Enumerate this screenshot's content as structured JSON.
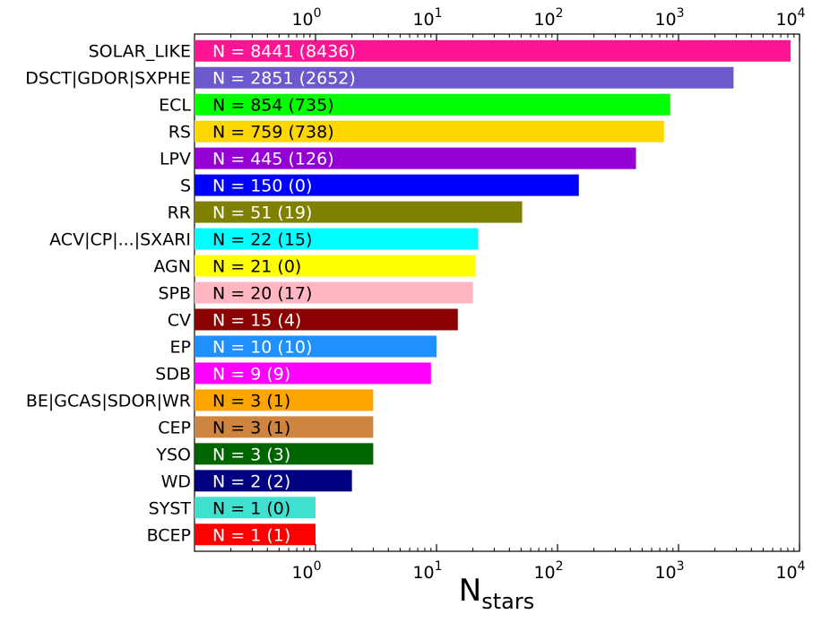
{
  "chart_data": {
    "type": "bar",
    "orientation": "horizontal",
    "x_scale": "log",
    "xlabel": "N",
    "xlabel_sub": "stars",
    "xlim": [
      0.1,
      10000
    ],
    "x_ticks": [
      1,
      10,
      100,
      1000,
      10000
    ],
    "x_tick_labels": [
      {
        "base": "10",
        "exp": "0"
      },
      {
        "base": "10",
        "exp": "1"
      },
      {
        "base": "10",
        "exp": "2"
      },
      {
        "base": "10",
        "exp": "3"
      },
      {
        "base": "10",
        "exp": "4"
      }
    ],
    "ticks_on_top_and_bottom": true,
    "grid": false,
    "categories": [
      "SOLAR_LIKE",
      "DSCT|GDOR|SXPHE",
      "ECL",
      "RS",
      "LPV",
      "S",
      "RR",
      "ACV|CP|...|SXARI",
      "AGN",
      "SPB",
      "CV",
      "EP",
      "SDB",
      "BE|GCAS|SDOR|WR",
      "CEP",
      "YSO",
      "WD",
      "SYST",
      "BCEP"
    ],
    "values": [
      8441,
      2851,
      854,
      759,
      445,
      150,
      51,
      22,
      21,
      20,
      15,
      10,
      9,
      3,
      3,
      3,
      2,
      1,
      1
    ],
    "data_labels": [
      "N = 8441 (8436)",
      "N = 2851 (2652)",
      "N = 854 (735)",
      "N = 759 (738)",
      "N = 445 (126)",
      "N = 150 (0)",
      "N = 51 (19)",
      "N = 22 (15)",
      "N = 21 (0)",
      "N = 20 (17)",
      "N = 15 (4)",
      "N = 10 (10)",
      "N = 9 (9)",
      "N = 3 (1)",
      "N = 3 (1)",
      "N = 3 (3)",
      "N = 2 (2)",
      "N = 1 (0)",
      "N = 1 (1)"
    ],
    "colors": [
      "#ff1493",
      "#6a5acd",
      "#00ff00",
      "#ffd700",
      "#9400d3",
      "#0000ff",
      "#808000",
      "#00ffff",
      "#ffff00",
      "#ffb6c1",
      "#8b0000",
      "#1e90ff",
      "#ff00ff",
      "#ffa500",
      "#cd853f",
      "#006400",
      "#000080",
      "#40e0d0",
      "#ff0000"
    ],
    "label_colors": [
      "#ffffff",
      "#ffffff",
      "#000000",
      "#000000",
      "#ffffff",
      "#ffffff",
      "#ffffff",
      "#000000",
      "#000000",
      "#000000",
      "#ffffff",
      "#ffffff",
      "#ffffff",
      "#000000",
      "#000000",
      "#ffffff",
      "#ffffff",
      "#000000",
      "#ffffff"
    ]
  }
}
